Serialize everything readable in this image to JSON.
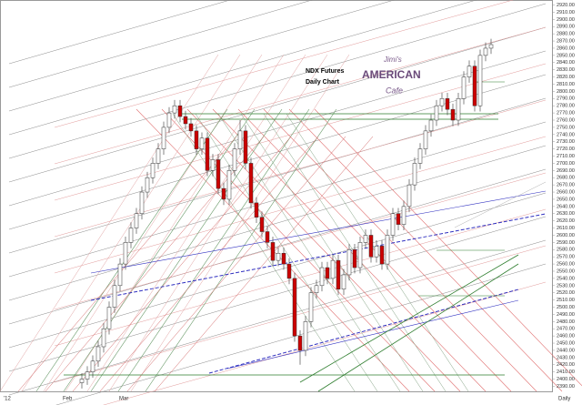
{
  "chart_data": {
    "type": "candlestick",
    "title": "NDX  Futures",
    "subtitle": "Daily Chart",
    "logo": [
      "Jimi's",
      "AMERICAN",
      "Cafe"
    ],
    "x_axis_labels": [
      "'12",
      "Feb",
      "Mar"
    ],
    "x_axis_title": "Daily",
    "up_color": "#ffffff",
    "down_color": "#cc0000",
    "open": [
      2395,
      2400,
      2410,
      2425,
      2445,
      2470,
      2500,
      2530,
      2560,
      2590,
      2610,
      2630,
      2660,
      2680,
      2700,
      2720,
      2750,
      2770,
      2780,
      2765,
      2755,
      2745,
      2720,
      2735,
      2690,
      2705,
      2665,
      2650,
      2690,
      2720,
      2745,
      2700,
      2645,
      2625,
      2605,
      2590,
      2565,
      2575,
      2560,
      2540,
      2460,
      2440,
      2480,
      2520,
      2530,
      2555,
      2540,
      2565,
      2525,
      2545,
      2580,
      2555,
      2590,
      2600,
      2570,
      2585,
      2560,
      2600,
      2630,
      2615,
      2640,
      2670,
      2700,
      2720,
      2745,
      2760,
      2780,
      2790,
      2775,
      2760,
      2790,
      2820,
      2835,
      2780,
      2850,
      2860
    ],
    "high": [
      2408,
      2418,
      2433,
      2453,
      2478,
      2508,
      2538,
      2568,
      2598,
      2618,
      2638,
      2668,
      2688,
      2708,
      2728,
      2758,
      2778,
      2788,
      2788,
      2773,
      2763,
      2753,
      2743,
      2743,
      2713,
      2713,
      2673,
      2698,
      2728,
      2760,
      2753,
      2708,
      2653,
      2633,
      2613,
      2598,
      2583,
      2583,
      2568,
      2548,
      2468,
      2488,
      2528,
      2538,
      2563,
      2563,
      2573,
      2573,
      2553,
      2588,
      2588,
      2598,
      2608,
      2608,
      2593,
      2593,
      2608,
      2638,
      2638,
      2648,
      2678,
      2708,
      2728,
      2753,
      2768,
      2788,
      2798,
      2798,
      2783,
      2798,
      2828,
      2843,
      2843,
      2858,
      2868,
      2873
    ],
    "low": [
      2387,
      2392,
      2402,
      2417,
      2437,
      2462,
      2492,
      2522,
      2552,
      2582,
      2602,
      2622,
      2652,
      2672,
      2692,
      2712,
      2742,
      2762,
      2757,
      2747,
      2737,
      2712,
      2712,
      2682,
      2682,
      2657,
      2642,
      2642,
      2682,
      2712,
      2692,
      2637,
      2617,
      2597,
      2582,
      2557,
      2557,
      2552,
      2532,
      2452,
      2420,
      2432,
      2472,
      2512,
      2522,
      2532,
      2532,
      2517,
      2517,
      2537,
      2547,
      2547,
      2582,
      2562,
      2562,
      2552,
      2552,
      2592,
      2607,
      2607,
      2632,
      2662,
      2692,
      2712,
      2737,
      2752,
      2772,
      2767,
      2752,
      2752,
      2782,
      2812,
      2772,
      2772,
      2842,
      2852
    ],
    "close": [
      2400,
      2410,
      2425,
      2445,
      2470,
      2500,
      2530,
      2560,
      2590,
      2610,
      2630,
      2660,
      2680,
      2700,
      2720,
      2750,
      2770,
      2780,
      2765,
      2755,
      2745,
      2720,
      2735,
      2690,
      2705,
      2665,
      2650,
      2690,
      2720,
      2745,
      2700,
      2645,
      2625,
      2605,
      2590,
      2565,
      2575,
      2560,
      2540,
      2460,
      2440,
      2480,
      2520,
      2530,
      2555,
      2540,
      2565,
      2525,
      2545,
      2580,
      2555,
      2590,
      2600,
      2570,
      2585,
      2560,
      2600,
      2630,
      2615,
      2640,
      2670,
      2700,
      2720,
      2745,
      2760,
      2780,
      2790,
      2775,
      2760,
      2790,
      2820,
      2835,
      2780,
      2850,
      2860,
      2865
    ],
    "ylim": [
      2383,
      2927
    ],
    "yticks": [
      {
        "value": 2390,
        "label": "2390.00"
      },
      {
        "value": 2400,
        "label": "2400.00"
      },
      {
        "value": 2410,
        "label": "2410.00"
      },
      {
        "value": 2420,
        "label": "2420.00"
      },
      {
        "value": 2430,
        "label": "2430.00"
      },
      {
        "value": 2440,
        "label": "2440.00"
      },
      {
        "value": 2450,
        "label": "2450.00"
      },
      {
        "value": 2460,
        "label": "2460.00"
      },
      {
        "value": 2470,
        "label": "2470.00"
      },
      {
        "value": 2480,
        "label": "2480.00"
      },
      {
        "value": 2490,
        "label": "2490.00"
      },
      {
        "value": 2500,
        "label": "2500.00"
      },
      {
        "value": 2510,
        "label": "2510.00"
      },
      {
        "value": 2520,
        "label": "2520.00"
      },
      {
        "value": 2530,
        "label": "2530.00"
      },
      {
        "value": 2540,
        "label": "2540.00"
      },
      {
        "value": 2550,
        "label": "2550.00"
      },
      {
        "value": 2560,
        "label": "2560.00"
      },
      {
        "value": 2570,
        "label": "2570.00"
      },
      {
        "value": 2580,
        "label": "2580.00"
      },
      {
        "value": 2590,
        "label": "2590.00"
      },
      {
        "value": 2600,
        "label": "2600.00"
      },
      {
        "value": 2610,
        "label": "2610.00"
      },
      {
        "value": 2620,
        "label": "2620.00"
      },
      {
        "value": 2630,
        "label": "2630.00"
      },
      {
        "value": 2640,
        "label": "2640.00"
      },
      {
        "value": 2650,
        "label": "2650.00"
      },
      {
        "value": 2660,
        "label": "2660.00"
      },
      {
        "value": 2670,
        "label": "2670.00"
      },
      {
        "value": 2680,
        "label": "2680.00"
      },
      {
        "value": 2690,
        "label": "2690.00"
      },
      {
        "value": 2700,
        "label": "2700.00"
      },
      {
        "value": 2710,
        "label": "2710.00"
      },
      {
        "value": 2720,
        "label": "2720.00"
      },
      {
        "value": 2730,
        "label": "2730.00"
      },
      {
        "value": 2740,
        "label": "2740.00"
      },
      {
        "value": 2750,
        "label": "2750.00"
      },
      {
        "value": 2760,
        "label": "2760.00"
      },
      {
        "value": 2770,
        "label": "2770.00"
      },
      {
        "value": 2780,
        "label": "2780.00"
      },
      {
        "value": 2790,
        "label": "2790.00"
      },
      {
        "value": 2800,
        "label": "2800.00"
      },
      {
        "value": 2810,
        "label": "2810.00"
      },
      {
        "value": 2820,
        "label": "2820.00"
      },
      {
        "value": 2830,
        "label": "2830.00"
      },
      {
        "value": 2840,
        "label": "2840.00"
      },
      {
        "value": 2850,
        "label": "2850.00"
      },
      {
        "value": 2860,
        "label": "2860.00"
      },
      {
        "value": 2870,
        "label": "2870.00"
      },
      {
        "value": 2880,
        "label": "2880.00"
      },
      {
        "value": 2890,
        "label": "2890.00"
      },
      {
        "value": 2900,
        "label": "2900.00"
      },
      {
        "value": 2910,
        "label": "2910.00"
      },
      {
        "value": 2920,
        "label": "2920.00"
      }
    ]
  }
}
